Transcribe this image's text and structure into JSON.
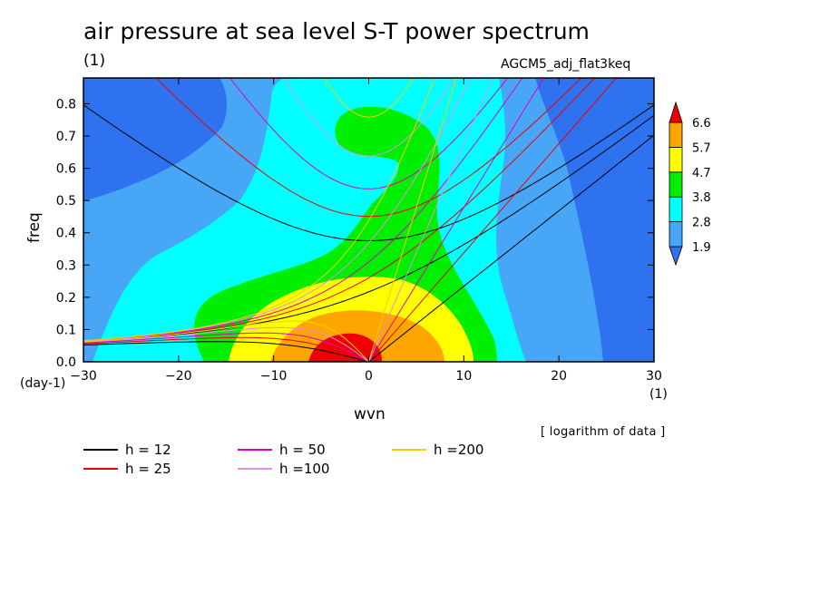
{
  "title": "air pressure at sea level S-T power spectrum",
  "units_label": "(1)",
  "model_name": "AGCM5_adj_flat3keq",
  "note": "[ logarithm of data ]",
  "chart_data": {
    "type": "heatmap",
    "xlabel": "wvn",
    "ylabel": "freq",
    "x_unit_label": "(1)",
    "y_unit_label": "(day-1)",
    "xlim": [
      -30,
      30
    ],
    "ylim": [
      0.0,
      0.88
    ],
    "xticks": [
      -30,
      -20,
      -10,
      0,
      10,
      20,
      30
    ],
    "yticks": [
      "0.0",
      "0.1",
      "0.2",
      "0.3",
      "0.4",
      "0.5",
      "0.6",
      "0.7",
      "0.8"
    ],
    "colorbar": {
      "levels": [
        "1.9",
        "2.8",
        "3.8",
        "4.7",
        "5.7",
        "6.6"
      ],
      "colors": [
        "#2f72f0",
        "#47a6f5",
        "#00ffff",
        "#00ee00",
        "#ffff00",
        "#ffa500",
        "#ee0000"
      ]
    },
    "field": {
      "description": "log power peaks near wvn 0, freq 0 (>6.6) decreasing outward; secondary maximum 4.7 near wvn -1, freq 0.70",
      "center_peak": {
        "x": 0,
        "y": 0.0,
        "value": 7.0
      }
    },
    "dispersion_curves": [
      {
        "name": "h = 12",
        "color": "#000000"
      },
      {
        "name": "h = 25",
        "color": "#ee0000"
      },
      {
        "name": "h = 50",
        "color": "#e000c0"
      },
      {
        "name": "h =100",
        "color": "#e090e0"
      },
      {
        "name": "h =200",
        "color": "#f0d000"
      }
    ]
  }
}
